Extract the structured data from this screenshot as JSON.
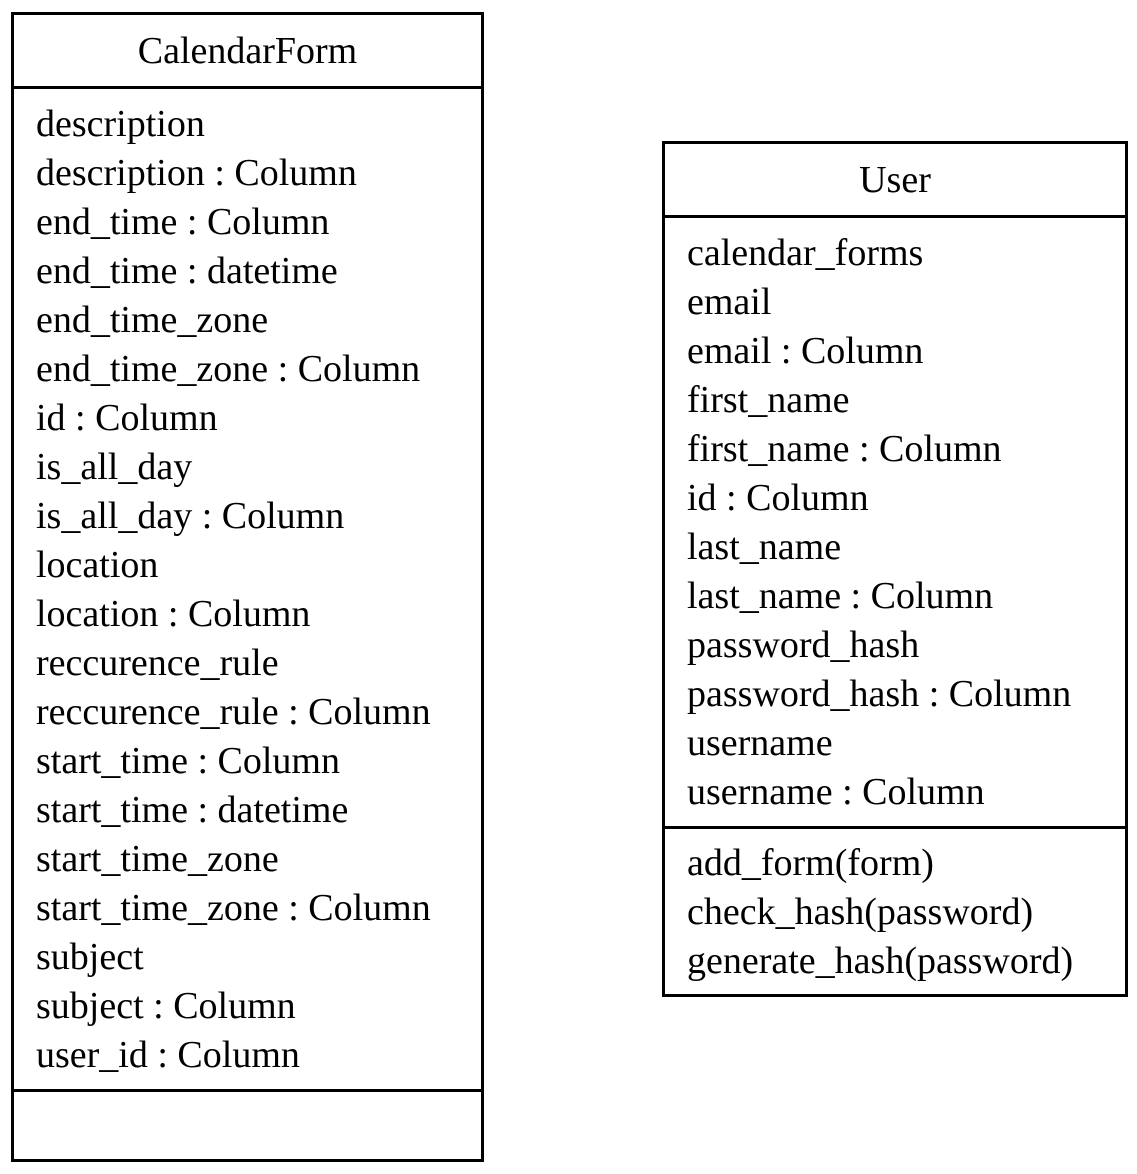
{
  "classes": {
    "calendar_form": {
      "name": "CalendarForm",
      "attributes": [
        "description",
        "description : Column",
        "end_time : Column",
        "end_time : datetime",
        "end_time_zone",
        "end_time_zone : Column",
        "id : Column",
        "is_all_day",
        "is_all_day : Column",
        "location",
        "location : Column",
        "reccurence_rule",
        "reccurence_rule : Column",
        "start_time : Column",
        "start_time : datetime",
        "start_time_zone",
        "start_time_zone : Column",
        "subject",
        "subject : Column",
        "user_id : Column"
      ],
      "methods": []
    },
    "user": {
      "name": "User",
      "attributes": [
        "calendar_forms",
        "email",
        "email : Column",
        "first_name",
        "first_name : Column",
        "id : Column",
        "last_name",
        "last_name : Column",
        "password_hash",
        "password_hash : Column",
        "username",
        "username : Column"
      ],
      "methods": [
        "add_form(form)",
        "check_hash(password)",
        "generate_hash(password)"
      ]
    }
  }
}
